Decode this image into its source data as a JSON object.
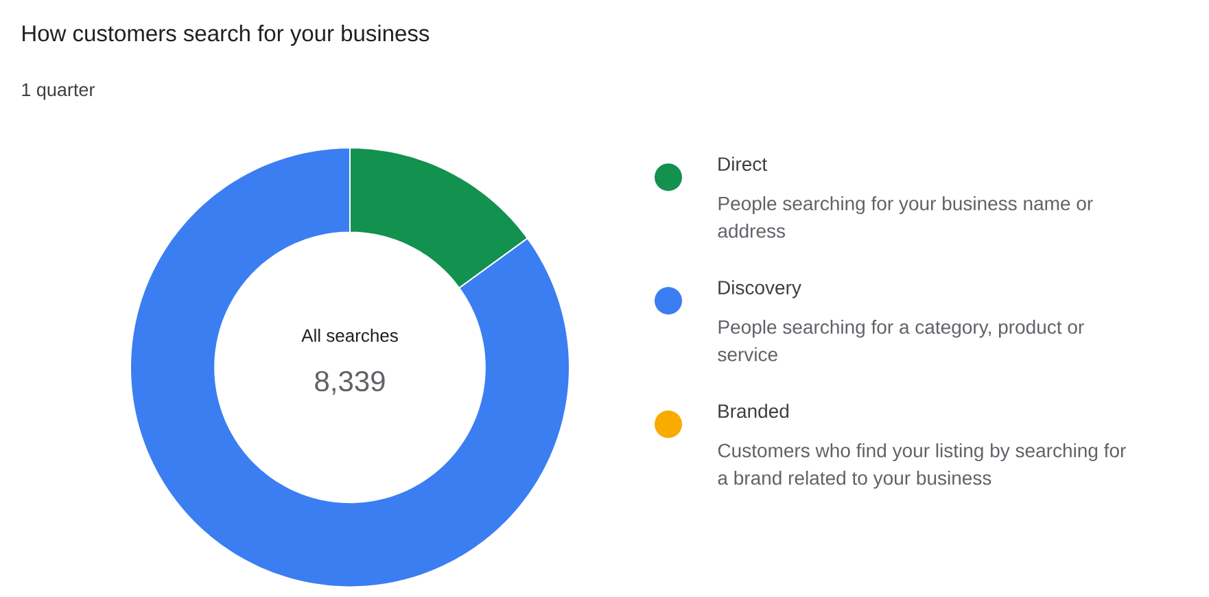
{
  "chart_data": {
    "type": "donut",
    "title": "How customers search for your business",
    "subtitle": "1 quarter",
    "categories": [
      "Direct",
      "Discovery",
      "Branded"
    ],
    "values": [
      15,
      85,
      0
    ],
    "colors": [
      "#13914e",
      "#3b7ef2",
      "#f9ab00"
    ],
    "legend": "right",
    "annotations": [
      "All searches",
      "8,339",
      "People searching for your business name or address",
      "People searching for a category, product or service",
      "Customers who find your listing by searching for a brand related to your business"
    ]
  }
}
